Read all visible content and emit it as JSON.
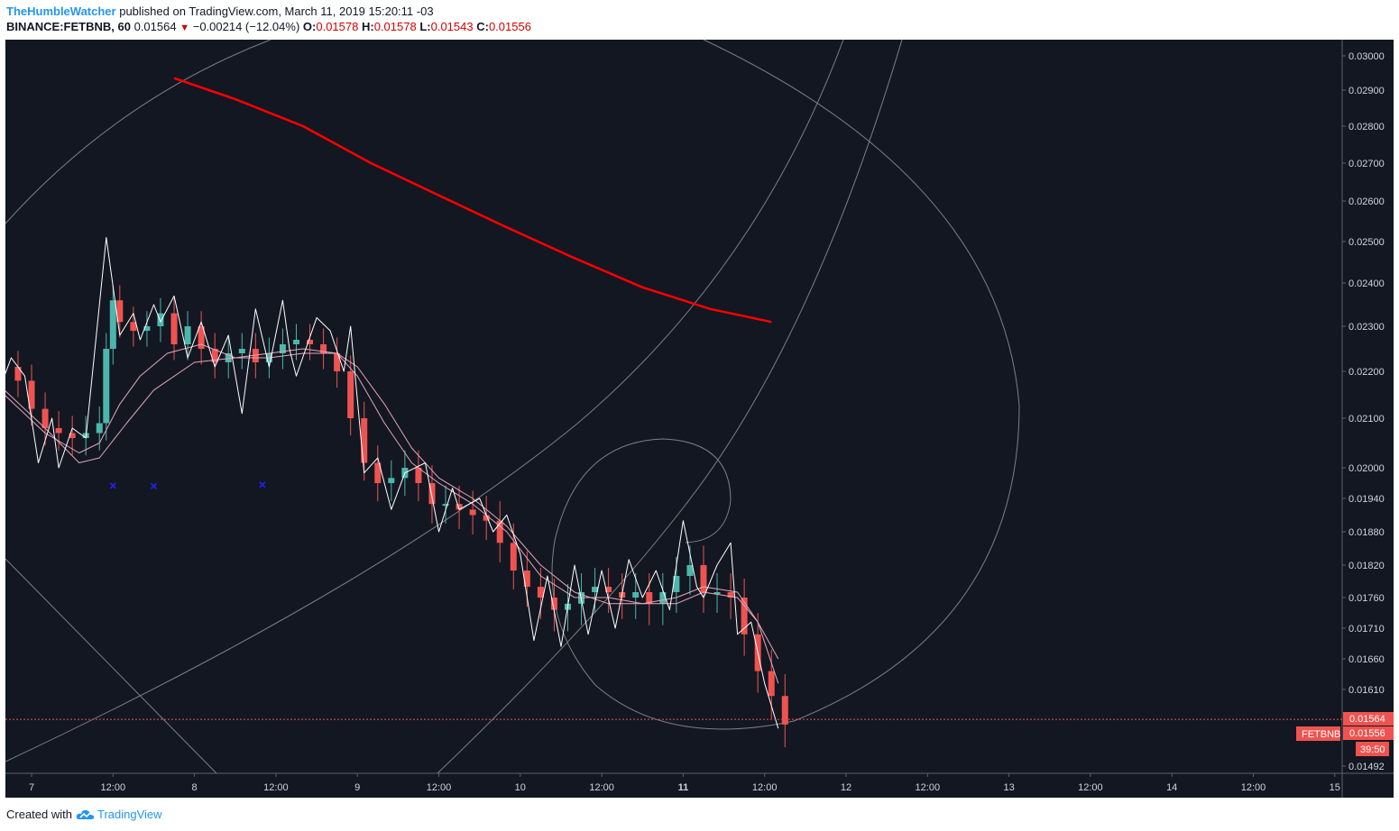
{
  "header": {
    "author": "TheHumbleWatcher",
    "published_text": "published on TradingView.com, March 11, 2019 15:20:11 -03",
    "symbol_interval": "BINANCE:FETBNB, 60",
    "last_price": "0.01564",
    "change": "−0.00214 (−12.04%)",
    "o_label": "O:",
    "o_value": "0.01578",
    "h_label": "H:",
    "h_value": "0.01578",
    "l_label": "L:",
    "l_value": "0.01543",
    "c_label": "C:",
    "c_value": "0.01556"
  },
  "footer": {
    "created_with": "Created with",
    "brand": "TradingView"
  },
  "colors": {
    "background": "#131722",
    "up": "#4db6ac",
    "down": "#ef5350",
    "ma": "#e4a6b9",
    "zigzag": "#ffffff",
    "trend": "#ff0000",
    "marker": "#1e22e6",
    "grid_lines": "#7d7f86"
  },
  "chart_data": {
    "type": "candlestick",
    "symbol": "FETBNB",
    "interval": "60",
    "countdown_label": "39:50",
    "price_labels": {
      "price_1": "0.01564",
      "price_2": "0.01556"
    },
    "y_ticks": [
      "0.03000",
      "0.02900",
      "0.02800",
      "0.02700",
      "0.02600",
      "0.02500",
      "0.02400",
      "0.02300",
      "0.02200",
      "0.02100",
      "0.02000",
      "0.01940",
      "0.01880",
      "0.01820",
      "0.01760",
      "0.01710",
      "0.01660",
      "0.01610",
      "0.01492"
    ],
    "y_tick_values": [
      0.03,
      0.029,
      0.028,
      0.027,
      0.026,
      0.025,
      0.024,
      0.023,
      0.022,
      0.021,
      0.02,
      0.0194,
      0.0188,
      0.0182,
      0.0176,
      0.0171,
      0.0166,
      0.0161,
      0.01492
    ],
    "x_ticks": [
      {
        "label": "7",
        "t": 0,
        "bold": false
      },
      {
        "label": "12:00",
        "t": 12,
        "bold": false
      },
      {
        "label": "8",
        "t": 24,
        "bold": false
      },
      {
        "label": "12:00",
        "t": 36,
        "bold": false
      },
      {
        "label": "9",
        "t": 48,
        "bold": false
      },
      {
        "label": "12:00",
        "t": 60,
        "bold": false
      },
      {
        "label": "10",
        "t": 72,
        "bold": false
      },
      {
        "label": "12:00",
        "t": 84,
        "bold": false
      },
      {
        "label": "11",
        "t": 96,
        "bold": true
      },
      {
        "label": "12:00",
        "t": 108,
        "bold": false
      },
      {
        "label": "12",
        "t": 120,
        "bold": false
      },
      {
        "label": "12:00",
        "t": 132,
        "bold": false
      },
      {
        "label": "13",
        "t": 144,
        "bold": false
      },
      {
        "label": "12:00",
        "t": 156,
        "bold": false
      },
      {
        "label": "14",
        "t": 168,
        "bold": false
      },
      {
        "label": "12:00",
        "t": 180,
        "bold": false
      },
      {
        "label": "15",
        "t": 192,
        "bold": false
      }
    ],
    "x_axis_note": "t = hours since March 7 00:00",
    "close_series": [
      {
        "t": -4,
        "v": 0.0221
      },
      {
        "t": -2,
        "v": 0.0218
      },
      {
        "t": 0,
        "v": 0.0212
      },
      {
        "t": 2,
        "v": 0.0208
      },
      {
        "t": 4,
        "v": 0.0207
      },
      {
        "t": 6,
        "v": 0.0206
      },
      {
        "t": 8,
        "v": 0.0207
      },
      {
        "t": 10,
        "v": 0.0209
      },
      {
        "t": 11,
        "v": 0.0225
      },
      {
        "t": 12,
        "v": 0.0236
      },
      {
        "t": 13,
        "v": 0.0231
      },
      {
        "t": 15,
        "v": 0.0229
      },
      {
        "t": 17,
        "v": 0.023
      },
      {
        "t": 19,
        "v": 0.0233
      },
      {
        "t": 21,
        "v": 0.0226
      },
      {
        "t": 23,
        "v": 0.023
      },
      {
        "t": 25,
        "v": 0.0225
      },
      {
        "t": 27,
        "v": 0.0222
      },
      {
        "t": 29,
        "v": 0.0224
      },
      {
        "t": 31,
        "v": 0.0225
      },
      {
        "t": 33,
        "v": 0.0222
      },
      {
        "t": 35,
        "v": 0.0224
      },
      {
        "t": 37,
        "v": 0.0226
      },
      {
        "t": 39,
        "v": 0.0227
      },
      {
        "t": 41,
        "v": 0.0226
      },
      {
        "t": 43,
        "v": 0.0224
      },
      {
        "t": 45,
        "v": 0.022
      },
      {
        "t": 47,
        "v": 0.021
      },
      {
        "t": 49,
        "v": 0.0201
      },
      {
        "t": 51,
        "v": 0.0197
      },
      {
        "t": 53,
        "v": 0.0198
      },
      {
        "t": 55,
        "v": 0.02
      },
      {
        "t": 57,
        "v": 0.0197
      },
      {
        "t": 59,
        "v": 0.0193
      },
      {
        "t": 61,
        "v": 0.0193
      },
      {
        "t": 63,
        "v": 0.0192
      },
      {
        "t": 65,
        "v": 0.0191
      },
      {
        "t": 67,
        "v": 0.019
      },
      {
        "t": 69,
        "v": 0.0186
      },
      {
        "t": 71,
        "v": 0.0181
      },
      {
        "t": 73,
        "v": 0.0178
      },
      {
        "t": 75,
        "v": 0.0176
      },
      {
        "t": 77,
        "v": 0.0174
      },
      {
        "t": 79,
        "v": 0.0175
      },
      {
        "t": 81,
        "v": 0.0177
      },
      {
        "t": 83,
        "v": 0.0178
      },
      {
        "t": 85,
        "v": 0.0177
      },
      {
        "t": 87,
        "v": 0.0176
      },
      {
        "t": 89,
        "v": 0.0177
      },
      {
        "t": 91,
        "v": 0.0175
      },
      {
        "t": 93,
        "v": 0.0177
      },
      {
        "t": 95,
        "v": 0.018
      },
      {
        "t": 97,
        "v": 0.0182
      },
      {
        "t": 99,
        "v": 0.0177
      },
      {
        "t": 101,
        "v": 0.0177
      },
      {
        "t": 103,
        "v": 0.0176
      },
      {
        "t": 105,
        "v": 0.017
      },
      {
        "t": 107,
        "v": 0.0164
      },
      {
        "t": 109,
        "v": 0.016
      },
      {
        "t": 111,
        "v": 0.01556
      }
    ],
    "zigzag_points": [
      {
        "t": -4,
        "v": 0.0219
      },
      {
        "t": -3,
        "v": 0.0223
      },
      {
        "t": -1,
        "v": 0.0219
      },
      {
        "t": 1,
        "v": 0.0201
      },
      {
        "t": 3,
        "v": 0.021
      },
      {
        "t": 4,
        "v": 0.02
      },
      {
        "t": 6,
        "v": 0.0208
      },
      {
        "t": 8,
        "v": 0.0206
      },
      {
        "t": 11,
        "v": 0.0251
      },
      {
        "t": 13,
        "v": 0.0228
      },
      {
        "t": 15,
        "v": 0.0233
      },
      {
        "t": 16,
        "v": 0.0227
      },
      {
        "t": 18,
        "v": 0.0235
      },
      {
        "t": 19,
        "v": 0.0231
      },
      {
        "t": 21,
        "v": 0.0237
      },
      {
        "t": 23,
        "v": 0.0223
      },
      {
        "t": 25,
        "v": 0.0231
      },
      {
        "t": 27,
        "v": 0.0221
      },
      {
        "t": 29,
        "v": 0.0228
      },
      {
        "t": 31,
        "v": 0.0211
      },
      {
        "t": 33,
        "v": 0.0234
      },
      {
        "t": 35,
        "v": 0.0221
      },
      {
        "t": 37,
        "v": 0.0236
      },
      {
        "t": 38,
        "v": 0.0225
      },
      {
        "t": 39,
        "v": 0.0219
      },
      {
        "t": 42,
        "v": 0.0232
      },
      {
        "t": 44,
        "v": 0.0229
      },
      {
        "t": 46,
        "v": 0.022
      },
      {
        "t": 47,
        "v": 0.023
      },
      {
        "t": 49,
        "v": 0.0199
      },
      {
        "t": 51,
        "v": 0.0202
      },
      {
        "t": 53,
        "v": 0.0192
      },
      {
        "t": 55,
        "v": 0.0199
      },
      {
        "t": 58,
        "v": 0.0201
      },
      {
        "t": 60,
        "v": 0.0188
      },
      {
        "t": 62,
        "v": 0.0196
      },
      {
        "t": 63,
        "v": 0.0192
      },
      {
        "t": 66,
        "v": 0.0194
      },
      {
        "t": 68,
        "v": 0.0188
      },
      {
        "t": 70,
        "v": 0.0191
      },
      {
        "t": 72,
        "v": 0.0184
      },
      {
        "t": 74,
        "v": 0.0169
      },
      {
        "t": 76,
        "v": 0.018
      },
      {
        "t": 78,
        "v": 0.0168
      },
      {
        "t": 80,
        "v": 0.0182
      },
      {
        "t": 82,
        "v": 0.017
      },
      {
        "t": 84,
        "v": 0.0181
      },
      {
        "t": 86,
        "v": 0.0171
      },
      {
        "t": 88,
        "v": 0.0183
      },
      {
        "t": 90,
        "v": 0.0176
      },
      {
        "t": 92,
        "v": 0.0181
      },
      {
        "t": 94,
        "v": 0.0174
      },
      {
        "t": 96,
        "v": 0.019
      },
      {
        "t": 98,
        "v": 0.0178
      },
      {
        "t": 99,
        "v": 0.0176
      },
      {
        "t": 101,
        "v": 0.0182
      },
      {
        "t": 103,
        "v": 0.0186
      },
      {
        "t": 104,
        "v": 0.017
      },
      {
        "t": 106,
        "v": 0.0172
      },
      {
        "t": 108,
        "v": 0.0162
      },
      {
        "t": 110,
        "v": 0.0155
      }
    ],
    "ma_fast": [
      {
        "t": -4,
        "v": 0.0215
      },
      {
        "t": 2,
        "v": 0.0207
      },
      {
        "t": 7,
        "v": 0.0203
      },
      {
        "t": 10,
        "v": 0.0205
      },
      {
        "t": 13,
        "v": 0.0213
      },
      {
        "t": 16,
        "v": 0.0219
      },
      {
        "t": 20,
        "v": 0.0224
      },
      {
        "t": 25,
        "v": 0.0226
      },
      {
        "t": 30,
        "v": 0.0223
      },
      {
        "t": 35,
        "v": 0.0224
      },
      {
        "t": 40,
        "v": 0.0225
      },
      {
        "t": 45,
        "v": 0.0224
      },
      {
        "t": 48,
        "v": 0.0219
      },
      {
        "t": 52,
        "v": 0.0209
      },
      {
        "t": 56,
        "v": 0.0201
      },
      {
        "t": 60,
        "v": 0.0197
      },
      {
        "t": 65,
        "v": 0.0193
      },
      {
        "t": 70,
        "v": 0.0188
      },
      {
        "t": 75,
        "v": 0.018
      },
      {
        "t": 80,
        "v": 0.0176
      },
      {
        "t": 85,
        "v": 0.0176
      },
      {
        "t": 90,
        "v": 0.0175
      },
      {
        "t": 95,
        "v": 0.0176
      },
      {
        "t": 99,
        "v": 0.0178
      },
      {
        "t": 104,
        "v": 0.0177
      },
      {
        "t": 107,
        "v": 0.0172
      },
      {
        "t": 110,
        "v": 0.0166
      }
    ],
    "ma_slow": [
      {
        "t": -4,
        "v": 0.0216
      },
      {
        "t": 2,
        "v": 0.0208
      },
      {
        "t": 7,
        "v": 0.0201
      },
      {
        "t": 10,
        "v": 0.0202
      },
      {
        "t": 14,
        "v": 0.0209
      },
      {
        "t": 18,
        "v": 0.0216
      },
      {
        "t": 24,
        "v": 0.0222
      },
      {
        "t": 30,
        "v": 0.0223
      },
      {
        "t": 35,
        "v": 0.0223
      },
      {
        "t": 40,
        "v": 0.0224
      },
      {
        "t": 45,
        "v": 0.0224
      },
      {
        "t": 48,
        "v": 0.0221
      },
      {
        "t": 52,
        "v": 0.0213
      },
      {
        "t": 56,
        "v": 0.0204
      },
      {
        "t": 60,
        "v": 0.0198
      },
      {
        "t": 65,
        "v": 0.0194
      },
      {
        "t": 70,
        "v": 0.0189
      },
      {
        "t": 75,
        "v": 0.0182
      },
      {
        "t": 80,
        "v": 0.0177
      },
      {
        "t": 85,
        "v": 0.0175
      },
      {
        "t": 90,
        "v": 0.0175
      },
      {
        "t": 95,
        "v": 0.0175
      },
      {
        "t": 99,
        "v": 0.0177
      },
      {
        "t": 104,
        "v": 0.0176
      },
      {
        "t": 107,
        "v": 0.0172
      },
      {
        "t": 110,
        "v": 0.0162
      }
    ],
    "trend_line": [
      {
        "t": 21,
        "v": 0.02935
      },
      {
        "t": 30,
        "v": 0.02875
      },
      {
        "t": 40,
        "v": 0.028
      },
      {
        "t": 50,
        "v": 0.027
      },
      {
        "t": 60,
        "v": 0.02615
      },
      {
        "t": 70,
        "v": 0.02535
      },
      {
        "t": 80,
        "v": 0.0246
      },
      {
        "t": 90,
        "v": 0.0239
      },
      {
        "t": 100,
        "v": 0.0234
      },
      {
        "t": 109,
        "v": 0.0231
      }
    ],
    "x_markers": [
      {
        "t": 12,
        "v": 0.01965
      },
      {
        "t": 18,
        "v": 0.01964
      },
      {
        "t": 34,
        "v": 0.01967
      }
    ],
    "last_price_line": 0.01564
  }
}
